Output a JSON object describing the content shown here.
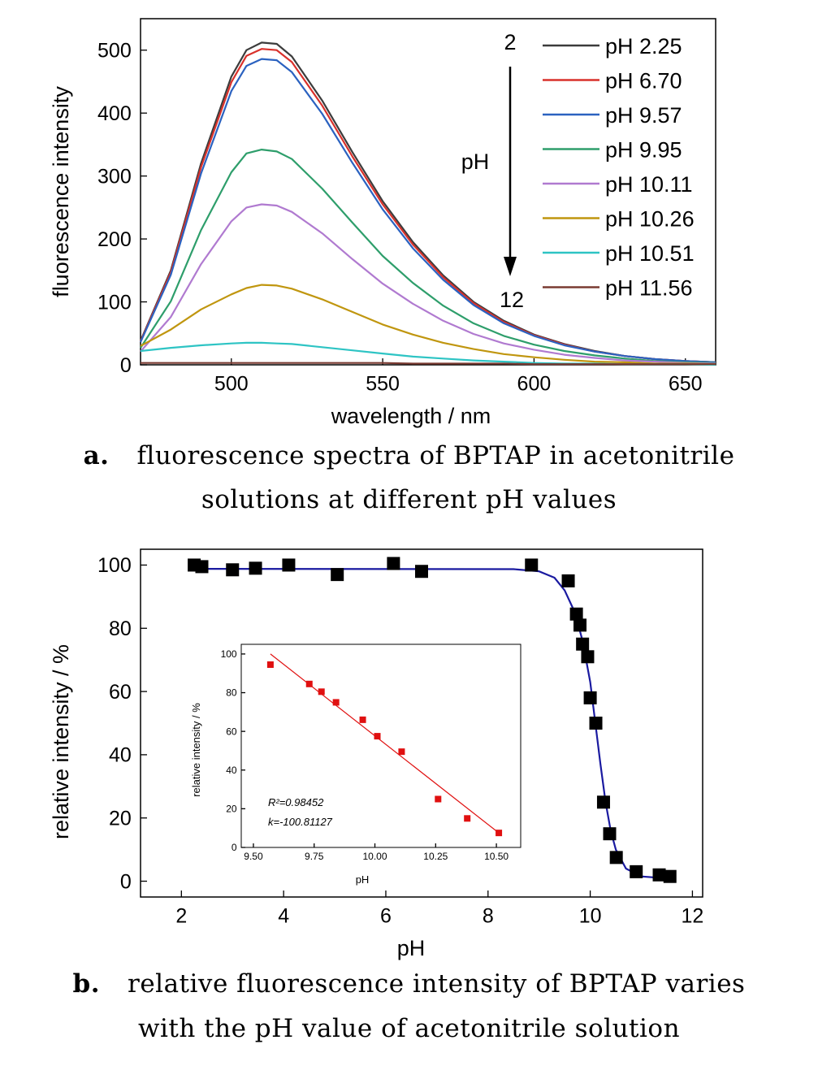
{
  "figure": {
    "panel_a": {
      "caption_letter": "a.",
      "caption_line1": "fluorescence spectra of BPTAP in acetonitrile",
      "caption_line2": "solutions at different pH values"
    },
    "panel_b": {
      "caption_letter": "b.",
      "caption_line1": "relative fluorescence intensity of BPTAP varies",
      "caption_line2": "with the pH value of acetonitrile solution"
    }
  },
  "chart_data": [
    {
      "type": "line",
      "xlabel": "wavelength / nm",
      "ylabel": "fluorescence intensity",
      "xlim": [
        470,
        660
      ],
      "ylim": [
        0,
        550
      ],
      "xticks": [
        500,
        550,
        600,
        650
      ],
      "yticks": [
        0,
        100,
        200,
        300,
        400,
        500
      ],
      "grid": false,
      "legend_position": "top-right",
      "annotation": {
        "label": "pH",
        "arrow_start": "2",
        "arrow_end": "12"
      },
      "x": [
        470,
        480,
        490,
        500,
        505,
        510,
        515,
        520,
        530,
        540,
        550,
        560,
        570,
        580,
        590,
        600,
        610,
        620,
        630,
        640,
        650,
        660
      ],
      "series": [
        {
          "name": "pH 2.25",
          "color": "#3c3c3c",
          "values": [
            38,
            150,
            320,
            458,
            500,
            512,
            510,
            490,
            420,
            338,
            260,
            195,
            142,
            100,
            70,
            48,
            33,
            22,
            14,
            9,
            6,
            4
          ]
        },
        {
          "name": "pH 6.70",
          "color": "#d9312b",
          "values": [
            37,
            147,
            314,
            449,
            491,
            502,
            500,
            481,
            412,
            331,
            255,
            191,
            139,
            98,
            68,
            47,
            32,
            21,
            14,
            9,
            6,
            4
          ]
        },
        {
          "name": "pH 9.57",
          "color": "#2b62c0",
          "values": [
            36,
            143,
            304,
            435,
            475,
            486,
            484,
            465,
            399,
            321,
            247,
            185,
            135,
            95,
            66,
            46,
            31,
            21,
            14,
            9,
            6,
            4
          ]
        },
        {
          "name": "pH 9.95",
          "color": "#2e9e6b",
          "values": [
            27,
            101,
            214,
            306,
            336,
            342,
            339,
            327,
            280,
            226,
            173,
            130,
            94,
            66,
            46,
            32,
            22,
            15,
            10,
            6,
            4,
            3
          ]
        },
        {
          "name": "pH 10.11",
          "color": "#b07ad0",
          "values": [
            21,
            76,
            160,
            228,
            250,
            255,
            253,
            243,
            209,
            168,
            129,
            97,
            70,
            49,
            34,
            24,
            16,
            11,
            7,
            5,
            3,
            2
          ]
        },
        {
          "name": "pH 10.26",
          "color": "#c0960f",
          "values": [
            30,
            56,
            88,
            112,
            122,
            127,
            126,
            121,
            104,
            84,
            64,
            48,
            35,
            25,
            17,
            12,
            8,
            5,
            4,
            2,
            2,
            1
          ]
        },
        {
          "name": "pH 10.51",
          "color": "#2ec4c4",
          "values": [
            22,
            27,
            31,
            34,
            35,
            35,
            34,
            33,
            28,
            23,
            18,
            13,
            10,
            7,
            5,
            3,
            2,
            2,
            1,
            1,
            1,
            0
          ]
        },
        {
          "name": "pH 11.56",
          "color": "#7a3b32",
          "values": [
            3,
            3,
            3,
            3,
            3,
            3,
            3,
            3,
            3,
            3,
            3,
            2,
            2,
            2,
            2,
            1,
            1,
            1,
            1,
            1,
            1,
            1
          ]
        }
      ]
    },
    {
      "type": "scatter",
      "xlabel": "pH",
      "ylabel": "relative intensity / %",
      "xlim": [
        1.2,
        12.2
      ],
      "ylim": [
        -5,
        105
      ],
      "xticks": [
        2,
        4,
        6,
        8,
        10,
        12
      ],
      "yticks": [
        0,
        20,
        40,
        60,
        80,
        100
      ],
      "grid": false,
      "marker_color": "#000000",
      "fit_color": "#1a1aa0",
      "points": [
        [
          2.25,
          100
        ],
        [
          2.4,
          99.5
        ],
        [
          3.0,
          98.5
        ],
        [
          3.45,
          99
        ],
        [
          4.1,
          100
        ],
        [
          5.05,
          97
        ],
        [
          6.15,
          100.5
        ],
        [
          6.7,
          98
        ],
        [
          8.85,
          100
        ],
        [
          9.57,
          95
        ],
        [
          9.73,
          84.5
        ],
        [
          9.8,
          81
        ],
        [
          9.85,
          75
        ],
        [
          9.95,
          71
        ],
        [
          10.0,
          58
        ],
        [
          10.11,
          50
        ],
        [
          10.26,
          25
        ],
        [
          10.38,
          15
        ],
        [
          10.51,
          7.5
        ],
        [
          10.9,
          3
        ],
        [
          11.35,
          2
        ],
        [
          11.56,
          1.5
        ]
      ],
      "fit": {
        "x": [
          2.25,
          8.5,
          9.0,
          9.3,
          9.5,
          9.7,
          9.85,
          10.0,
          10.1,
          10.2,
          10.3,
          10.4,
          10.5,
          10.7,
          11.0,
          11.56
        ],
        "y": [
          98.8,
          98.7,
          98,
          96,
          92,
          85,
          76,
          63,
          50,
          37,
          25,
          16,
          10,
          4,
          1.5,
          0.8
        ]
      }
    },
    {
      "type": "scatter",
      "xlabel": "pH",
      "ylabel": "relative intensity / %",
      "xlim": [
        9.45,
        10.6
      ],
      "ylim": [
        0,
        105
      ],
      "xticks": [
        9.5,
        9.75,
        10.0,
        10.25,
        10.5
      ],
      "xtick_labels": [
        "9.50",
        "9.75",
        "10.00",
        "10.25",
        "10.50"
      ],
      "yticks": [
        0,
        20,
        40,
        60,
        80,
        100
      ],
      "marker_color": "#e01010",
      "fit_color": "#e01010",
      "annotations": [
        "R²=0.98452",
        "k=-100.81127"
      ],
      "points": [
        [
          9.57,
          94.5
        ],
        [
          9.73,
          84.5
        ],
        [
          9.78,
          80.5
        ],
        [
          9.84,
          75
        ],
        [
          9.95,
          66
        ],
        [
          10.01,
          57.5
        ],
        [
          10.11,
          49.5
        ],
        [
          10.26,
          25
        ],
        [
          10.38,
          15
        ],
        [
          10.51,
          7.5
        ]
      ],
      "fit": {
        "x": [
          9.57,
          10.51
        ],
        "y": [
          100,
          7.5
        ]
      }
    }
  ]
}
